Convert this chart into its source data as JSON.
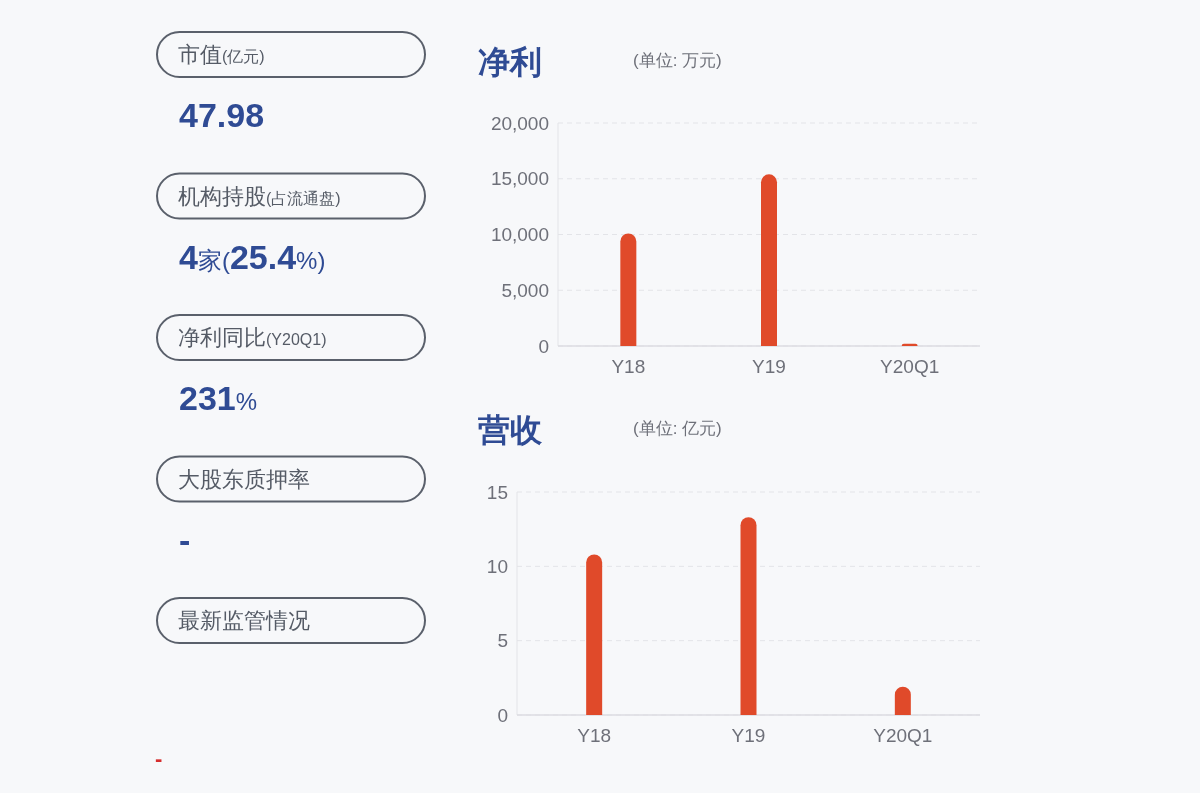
{
  "chart_data": [
    {
      "type": "other",
      "annotations": [
        "市值(亿元)",
        "47.98",
        "机构持股(占流通盘)",
        "4家(25.4%)",
        "净利同比(Y20Q1)",
        "231%",
        "大股东质押率",
        "-",
        "最新监管情况",
        "-"
      ]
    },
    {
      "type": "bar",
      "title": "净利",
      "subtitle": "(单位: 万元)",
      "categories": [
        "Y18",
        "Y19",
        "Y20Q1"
      ],
      "values": [
        10100,
        15400,
        200
      ],
      "color": "#e04a2a",
      "ylim": [
        0,
        20000
      ],
      "yticks": [
        0,
        {
          "value": 5000,
          "label": "5,000"
        },
        {
          "value": 10000,
          "label": "10,000"
        },
        {
          "value": 15000,
          "label": "15,000"
        },
        {
          "value": 20000,
          "label": "20,000"
        }
      ],
      "grid": "y"
    },
    {
      "type": "bar",
      "title": "营收",
      "subtitle": "(单位: 亿元)",
      "categories": [
        "Y18",
        "Y19",
        "Y20Q1"
      ],
      "values": [
        10.8,
        13.3,
        1.9
      ],
      "color": "#e04a2a",
      "ylim": [
        0,
        15
      ],
      "yticks": [
        0,
        5,
        10,
        15
      ],
      "grid": "y"
    }
  ]
}
